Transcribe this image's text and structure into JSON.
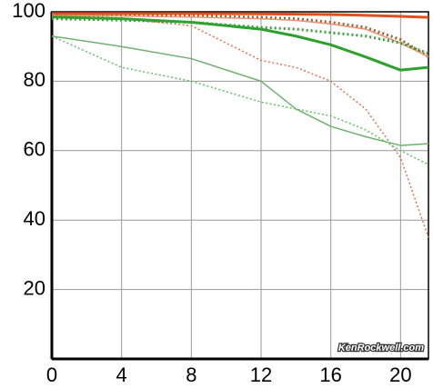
{
  "chart_data": {
    "type": "line",
    "x": [
      0,
      4,
      8,
      12,
      14,
      16,
      18,
      20,
      21.6
    ],
    "series": [
      {
        "color": "#e0501a",
        "width": 3,
        "dashed": false,
        "values": [
          99.5,
          99.5,
          99.5,
          99.4,
          99.3,
          99.2,
          99,
          98.7,
          98.4
        ]
      },
      {
        "color": "#a0602a",
        "width": 3,
        "dashed": true,
        "values": [
          99,
          99,
          98.8,
          98.4,
          98,
          97,
          95.5,
          92,
          87
        ]
      },
      {
        "color": "#e8907a",
        "width": 1.5,
        "dashed": false,
        "values": [
          99,
          98.8,
          98.5,
          98,
          97.5,
          96.5,
          95,
          91,
          87
        ]
      },
      {
        "color": "#e07050",
        "width": 1.5,
        "dashed": true,
        "values": [
          99,
          98,
          96,
          86,
          84,
          80,
          72,
          58,
          35
        ]
      },
      {
        "color": "#2ea02e",
        "width": 3,
        "dashed": false,
        "values": [
          98.5,
          98,
          97,
          95,
          93,
          90.5,
          87,
          83.2,
          84
        ]
      },
      {
        "color": "#3aa03a",
        "width": 3,
        "dashed": true,
        "values": [
          98,
          97.6,
          97,
          95.5,
          95,
          94,
          93,
          91,
          88
        ]
      },
      {
        "color": "#70b070",
        "width": 1.5,
        "dashed": false,
        "values": [
          93,
          90,
          86.5,
          80,
          72,
          67,
          64,
          61.5,
          62
        ]
      },
      {
        "color": "#60c060",
        "width": 1.5,
        "dashed": true,
        "values": [
          93,
          84,
          80,
          74,
          72,
          70,
          66,
          60,
          56
        ]
      }
    ],
    "xlim": [
      0,
      21.6
    ],
    "ylim": [
      0,
      100
    ],
    "xticks": [
      0,
      4,
      8,
      12,
      16,
      20
    ],
    "yticks": [
      20,
      40,
      60,
      80,
      100
    ],
    "grid": true,
    "watermark": "KenRockwell.com"
  }
}
